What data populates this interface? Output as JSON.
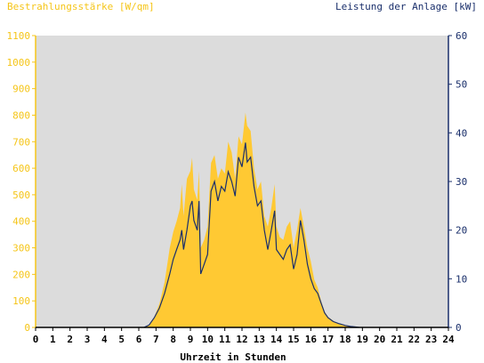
{
  "chart_data": {
    "type": "area",
    "left_title": "Bestrahlungsstärke [W/qm]",
    "right_title": "Leistung der Anlage [kW]",
    "xlabel": "Uhrzeit in Stunden",
    "x_ticks": [
      "0",
      "1",
      "2",
      "3",
      "4",
      "5",
      "6",
      "7",
      "8",
      "9",
      "10",
      "11",
      "12",
      "13",
      "14",
      "15",
      "16",
      "17",
      "18",
      "19",
      "20",
      "21",
      "22",
      "23",
      "24"
    ],
    "y_left_ticks": [
      "0",
      "100",
      "200",
      "300",
      "400",
      "500",
      "600",
      "700",
      "800",
      "900",
      "1000",
      "1100"
    ],
    "y_right_ticks": [
      "0",
      "10",
      "20",
      "30",
      "40",
      "50",
      "60"
    ],
    "xlim": [
      0,
      24
    ],
    "ylim_left": [
      0,
      1100
    ],
    "ylim_right": [
      0,
      60
    ],
    "grid": false,
    "colors": {
      "plot_bg": "#dcdcdc",
      "irradiance": "#ffc933",
      "power": "#1a2f6b",
      "left_axis": "#f5c518",
      "right_axis": "#1a2f6b"
    },
    "series": [
      {
        "axis": "left",
        "x": [
          6.3,
          6.6,
          6.9,
          7.2,
          7.5,
          7.8,
          8.0,
          8.2,
          8.4,
          8.5,
          8.6,
          8.8,
          9.0,
          9.1,
          9.2,
          9.4,
          9.5,
          9.6,
          9.8,
          10.0,
          10.2,
          10.4,
          10.6,
          10.8,
          11.0,
          11.2,
          11.4,
          11.6,
          11.8,
          12.0,
          12.2,
          12.3,
          12.5,
          12.7,
          12.9,
          13.1,
          13.3,
          13.5,
          13.7,
          13.9,
          14.0,
          14.2,
          14.4,
          14.6,
          14.8,
          15.0,
          15.2,
          15.4,
          15.6,
          15.8,
          16.0,
          16.2,
          16.4,
          16.6,
          16.8,
          17.0,
          17.3,
          17.6,
          18.0,
          18.3,
          18.6,
          18.8
        ],
        "y": [
          0,
          10,
          40,
          90,
          170,
          300,
          360,
          400,
          450,
          540,
          420,
          560,
          590,
          640,
          520,
          480,
          590,
          300,
          330,
          380,
          620,
          650,
          560,
          600,
          580,
          700,
          660,
          560,
          720,
          690,
          810,
          760,
          740,
          600,
          520,
          550,
          420,
          380,
          450,
          540,
          380,
          340,
          330,
          380,
          400,
          300,
          370,
          450,
          380,
          300,
          250,
          180,
          150,
          100,
          60,
          40,
          25,
          15,
          8,
          4,
          2,
          0
        ]
      },
      {
        "axis": "right",
        "x": [
          6.3,
          6.6,
          6.9,
          7.2,
          7.5,
          7.8,
          8.0,
          8.2,
          8.4,
          8.5,
          8.6,
          8.8,
          9.0,
          9.1,
          9.2,
          9.4,
          9.5,
          9.6,
          9.8,
          10.0,
          10.2,
          10.4,
          10.6,
          10.8,
          11.0,
          11.2,
          11.4,
          11.6,
          11.8,
          12.0,
          12.2,
          12.3,
          12.5,
          12.7,
          12.9,
          13.1,
          13.3,
          13.5,
          13.7,
          13.9,
          14.0,
          14.2,
          14.4,
          14.6,
          14.8,
          15.0,
          15.2,
          15.4,
          15.6,
          15.8,
          16.0,
          16.2,
          16.4,
          16.6,
          16.8,
          17.0,
          17.3,
          17.6,
          18.0,
          18.3,
          18.6,
          18.8
        ],
        "y": [
          0,
          0.5,
          2,
          4,
          7,
          11,
          14,
          16,
          18,
          20,
          16,
          20,
          25,
          26,
          22,
          20,
          26,
          11,
          13,
          15,
          28,
          30,
          26,
          29,
          28,
          32,
          30,
          27,
          35,
          33,
          38,
          34,
          35,
          29,
          25,
          26,
          20,
          16,
          20,
          24,
          16,
          15,
          14,
          16,
          17,
          12,
          15,
          22,
          18,
          13,
          10,
          8,
          7,
          5,
          3,
          2,
          1.2,
          0.8,
          0.4,
          0.2,
          0.1,
          0
        ]
      }
    ]
  }
}
